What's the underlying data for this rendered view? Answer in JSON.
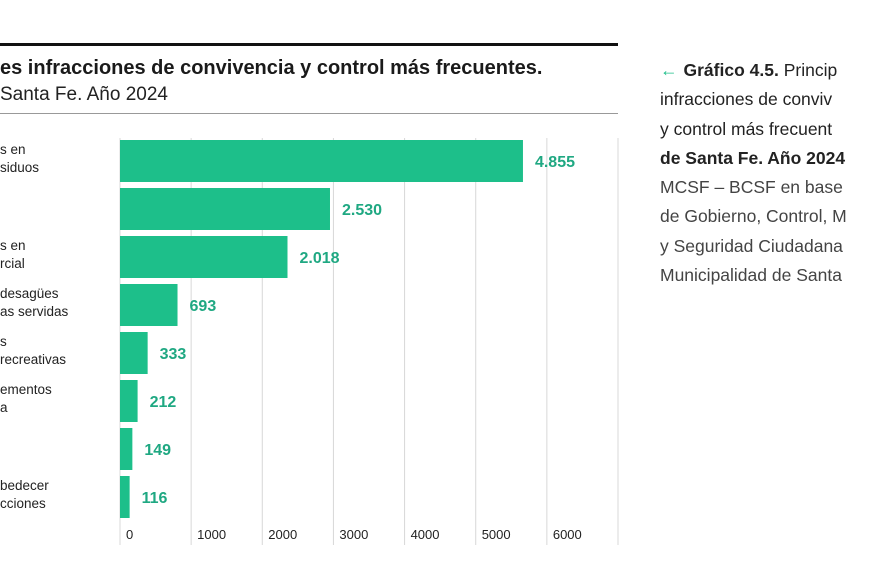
{
  "chart_data": {
    "type": "bar",
    "orientation": "horizontal",
    "title": "es infracciones de convivencia y control más frecuentes.",
    "subtitle": "Santa Fe. Año 2024",
    "category_labels": [
      [
        "s en",
        "siduos"
      ],
      [],
      [
        "s en",
        "rcial"
      ],
      [
        "desagües",
        "as servidas"
      ],
      [
        "s",
        "recreativas"
      ],
      [
        "ementos",
        "a"
      ],
      [],
      [
        "bedecer",
        "cciones"
      ]
    ],
    "values": [
      4855,
      2530,
      2018,
      693,
      333,
      212,
      149,
      116
    ],
    "value_labels": [
      "4.855",
      "2.530",
      "2.018",
      "693",
      "333",
      "212",
      "149",
      "116"
    ],
    "x_ticks": [
      "0",
      "1000",
      "2000",
      "3000",
      "4000",
      "5000",
      "6000"
    ],
    "xlim": [
      0,
      6000
    ],
    "grid": true,
    "bar_color": "#1dbf8a",
    "value_label_color": "#1fa882"
  },
  "caption": {
    "arrow_icon": "arrow-left-icon",
    "lead": "Gráfico 4.5.",
    "lines": [
      "Princip",
      "infracciones de conviv",
      "y control más frecuent",
      "de Santa Fe. Año 2024"
    ],
    "source_lines": [
      "MCSF – BCSF en base",
      "de Gobierno, Control, M",
      "y Seguridad Ciudadana",
      "Municipalidad de Santa"
    ]
  }
}
